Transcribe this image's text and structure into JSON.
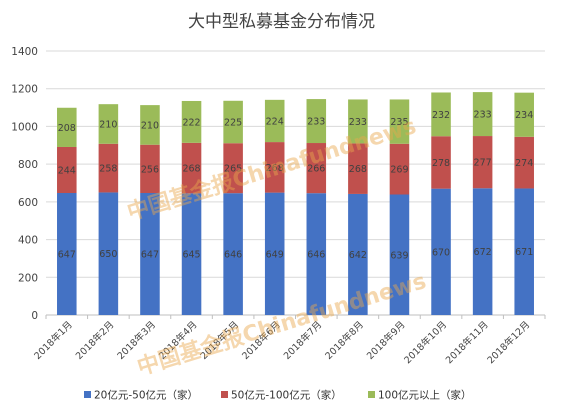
{
  "chart_data": {
    "type": "bar",
    "stacked": true,
    "title": "大中型私募基金分布情况",
    "categories": [
      "2018年1月",
      "2018年2月",
      "2018年3月",
      "2018年4月",
      "2018年5月",
      "2018年6月",
      "2018年7月",
      "2018年8月",
      "2018年9月",
      "2018年10月",
      "2018年11月",
      "2018年12月"
    ],
    "series": [
      {
        "name": "20亿元-50亿元（家）",
        "color": "#4472c4",
        "values": [
          647,
          650,
          647,
          645,
          646,
          649,
          646,
          642,
          639,
          670,
          672,
          671
        ]
      },
      {
        "name": "50亿元-100亿元（家）",
        "color": "#c0504d",
        "values": [
          244,
          258,
          256,
          268,
          265,
          268,
          266,
          268,
          269,
          278,
          277,
          274
        ]
      },
      {
        "name": "100亿元以上（家）",
        "color": "#9bbb59",
        "values": [
          208,
          210,
          210,
          222,
          225,
          224,
          233,
          233,
          235,
          232,
          233,
          234
        ]
      }
    ],
    "ylim": [
      0,
      1400
    ],
    "yticks": [
      0,
      200,
      400,
      600,
      800,
      1000,
      1200,
      1400
    ],
    "grid": true,
    "legend_position": "bottom"
  },
  "watermark": {
    "text": "中国基金报Chinafundnews",
    "color": "#e9a84d"
  }
}
